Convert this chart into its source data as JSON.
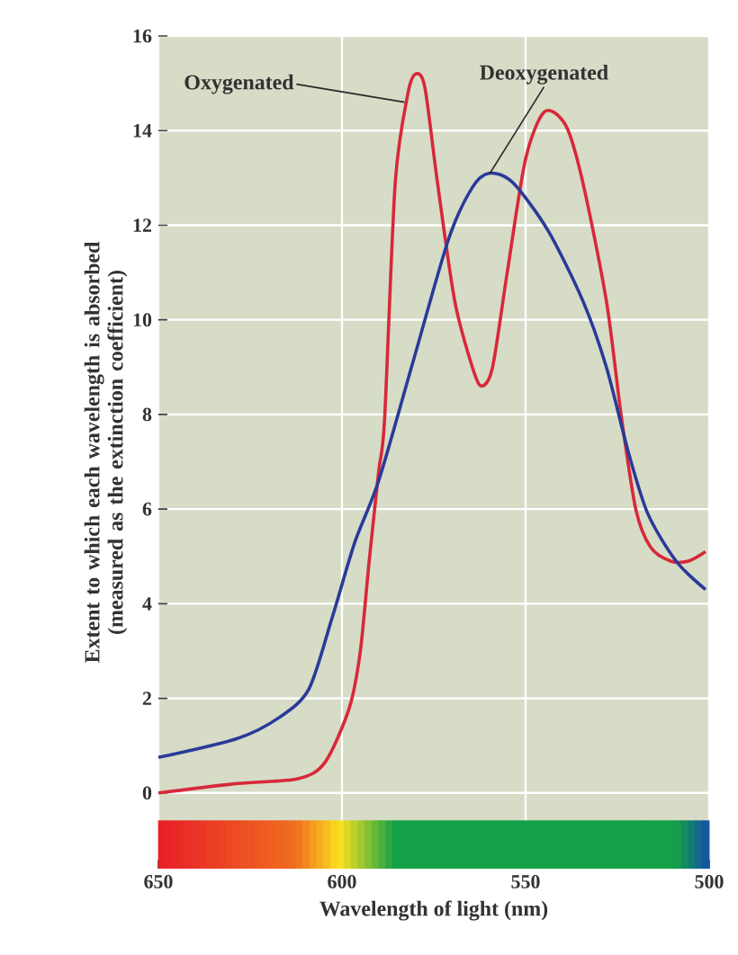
{
  "chart_data": {
    "type": "line",
    "xlabel": "Wavelength of light (nm)",
    "ylabel": "Extent to which each wavelength is absorbed (measured as the extinction coefficient)",
    "xlim": [
      650,
      500
    ],
    "ylim": [
      -1.6,
      16
    ],
    "xticks": [
      650,
      600,
      550,
      500
    ],
    "yticks": [
      0,
      2,
      4,
      6,
      8,
      10,
      12,
      14,
      16
    ],
    "grid": true,
    "line_style": "solid",
    "marker": "none",
    "annotations": [
      {
        "text": "Oxygenated",
        "x": 583,
        "y": 14.6
      },
      {
        "text": "Deoxygenated",
        "x": 559.7,
        "y": 13.1
      }
    ],
    "series": [
      {
        "color": "#d8283a",
        "x": [
          650,
          628.5,
          612,
          604.6,
          598,
          595,
          592.6,
          590,
          588.4,
          585.5,
          582,
          579.8,
          577.4,
          574,
          569.3,
          564.5,
          562,
          559,
          555,
          550,
          544.8,
          539,
          534.4,
          528,
          524,
          520,
          516,
          510.5,
          505.7,
          501
        ],
        "values": [
          0.0,
          0.2,
          0.3,
          0.65,
          1.8,
          3.0,
          4.9,
          6.8,
          7.9,
          12.9,
          14.8,
          15.2,
          14.9,
          12.9,
          10.4,
          9.0,
          8.6,
          9.0,
          11.0,
          13.4,
          14.4,
          14.1,
          12.9,
          10.4,
          8.0,
          6.0,
          5.2,
          4.9,
          4.9,
          5.1
        ]
      },
      {
        "color": "#2a3a9a",
        "x": [
          650,
          628.5,
          617,
          609,
          602.7,
          596.5,
          590,
          580.7,
          571,
          564.5,
          559.7,
          553.5,
          544,
          534.4,
          528,
          522,
          516.7,
          509,
          501
        ],
        "values": [
          0.75,
          1.15,
          1.6,
          2.2,
          3.7,
          5.3,
          6.6,
          9.1,
          11.7,
          12.8,
          13.1,
          12.9,
          11.9,
          10.4,
          9.0,
          7.2,
          5.9,
          4.9,
          4.3
        ]
      }
    ]
  }
}
